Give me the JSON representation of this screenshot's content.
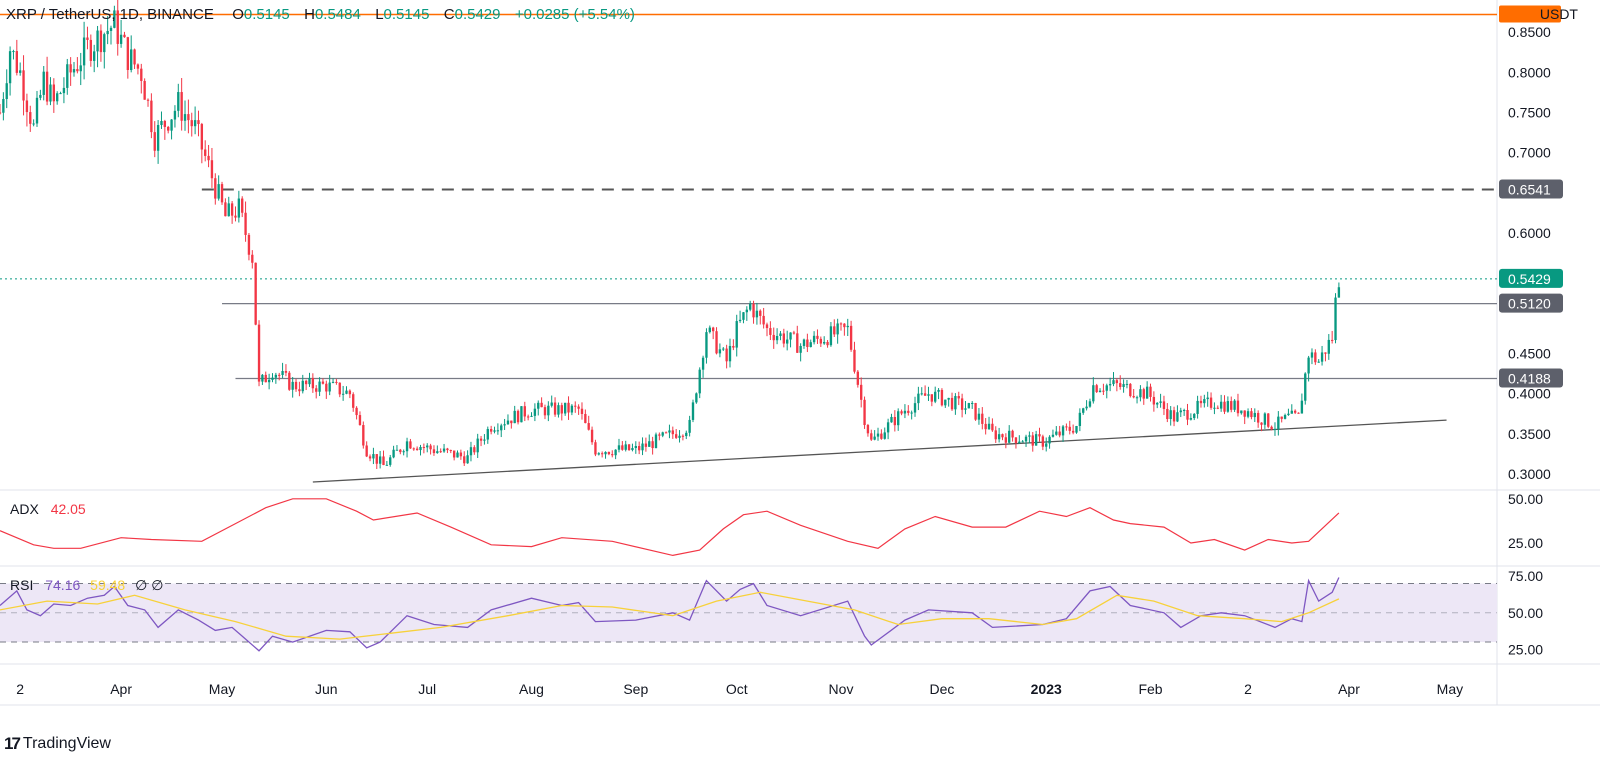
{
  "header": {
    "symbol": "XRP / TetherUS, 1D, BINANCE",
    "open_label": "O",
    "open": "0.5145",
    "high_label": "H",
    "high": "0.5484",
    "low_label": "L",
    "low": "0.5145",
    "close_label": "C",
    "close": "0.5429",
    "change": "+0.0285 (+5.54%)"
  },
  "currency": "USDT",
  "indicators": {
    "adx": {
      "name": "ADX",
      "value": "42.05"
    },
    "rsi": {
      "name": "RSI",
      "value": "74.16",
      "ma_value": "59.48",
      "extra": "∅ ∅"
    }
  },
  "brand": "TradingView",
  "colors": {
    "up": "#089981",
    "down": "#f23645",
    "adx": "#f23645",
    "rsi": "#7e57c2",
    "rsi_ma": "#f7d13a",
    "rsi_band": "#ede7f6",
    "accent": "#ff6d00",
    "level": "#787b86"
  },
  "chart_data": [
    {
      "type": "candlestick",
      "ylim": [
        0.28,
        0.89
      ],
      "y_ticks": [
        "0.8500",
        "0.8000",
        "0.7500",
        "0.7000",
        "0.6000",
        "0.4500",
        "0.4000",
        "0.3500",
        "0.3000"
      ],
      "x_ticks": [
        "2",
        "Apr",
        "May",
        "Jun",
        "Jul",
        "Aug",
        "Sep",
        "Oct",
        "Nov",
        "Dec",
        "2023",
        "Feb",
        "2",
        "Apr",
        "May"
      ],
      "price_markers": [
        {
          "label": "0.6541",
          "value": 0.6541,
          "kind": "level"
        },
        {
          "label": "0.5429",
          "value": 0.5429,
          "kind": "last"
        },
        {
          "label": "0.5120",
          "value": 0.512,
          "kind": "level"
        },
        {
          "label": "0.4188",
          "value": 0.4188,
          "kind": "level"
        }
      ],
      "accent_level": 0.872,
      "dashed_resistance": 0.6541,
      "support_trendline": [
        {
          "date": "2022-05-28",
          "price": 0.29
        },
        {
          "date": "2023-04-30",
          "price": 0.367
        }
      ],
      "close_path": [
        [
          "2022-02-24",
          0.75
        ],
        [
          "2022-02-27",
          0.83
        ],
        [
          "2022-03-02",
          0.8
        ],
        [
          "2022-03-06",
          0.73
        ],
        [
          "2022-03-09",
          0.79
        ],
        [
          "2022-03-12",
          0.76
        ],
        [
          "2022-03-17",
          0.8
        ],
        [
          "2022-03-22",
          0.83
        ],
        [
          "2022-03-27",
          0.85
        ],
        [
          "2022-03-30",
          0.86
        ],
        [
          "2022-04-03",
          0.82
        ],
        [
          "2022-04-07",
          0.8
        ],
        [
          "2022-04-11",
          0.72
        ],
        [
          "2022-04-18",
          0.76
        ],
        [
          "2022-04-23",
          0.73
        ],
        [
          "2022-04-28",
          0.67
        ],
        [
          "2022-05-02",
          0.62
        ],
        [
          "2022-05-06",
          0.63
        ],
        [
          "2022-05-10",
          0.57
        ],
        [
          "2022-05-12",
          0.41
        ],
        [
          "2022-05-16",
          0.43
        ],
        [
          "2022-05-22",
          0.41
        ],
        [
          "2022-06-01",
          0.41
        ],
        [
          "2022-06-08",
          0.4
        ],
        [
          "2022-06-13",
          0.33
        ],
        [
          "2022-06-18",
          0.31
        ],
        [
          "2022-06-25",
          0.34
        ],
        [
          "2022-07-03",
          0.33
        ],
        [
          "2022-07-13",
          0.32
        ],
        [
          "2022-07-20",
          0.36
        ],
        [
          "2022-08-01",
          0.38
        ],
        [
          "2022-08-15",
          0.38
        ],
        [
          "2022-08-20",
          0.33
        ],
        [
          "2022-09-01",
          0.33
        ],
        [
          "2022-09-12",
          0.35
        ],
        [
          "2022-09-17",
          0.36
        ],
        [
          "2022-09-22",
          0.48
        ],
        [
          "2022-09-28",
          0.44
        ],
        [
          "2022-10-01",
          0.48
        ],
        [
          "2022-10-05",
          0.51
        ],
        [
          "2022-10-10",
          0.48
        ],
        [
          "2022-10-20",
          0.46
        ],
        [
          "2022-11-03",
          0.48
        ],
        [
          "2022-11-08",
          0.37
        ],
        [
          "2022-11-10",
          0.34
        ],
        [
          "2022-11-20",
          0.38
        ],
        [
          "2022-11-27",
          0.4
        ],
        [
          "2022-12-10",
          0.38
        ],
        [
          "2022-12-16",
          0.35
        ],
        [
          "2022-12-31",
          0.34
        ],
        [
          "2023-01-10",
          0.36
        ],
        [
          "2023-01-15",
          0.41
        ],
        [
          "2023-01-22",
          0.41
        ],
        [
          "2023-01-31",
          0.4
        ],
        [
          "2023-02-08",
          0.37
        ],
        [
          "2023-02-14",
          0.38
        ],
        [
          "2023-02-20",
          0.39
        ],
        [
          "2023-03-01",
          0.38
        ],
        [
          "2023-03-10",
          0.36
        ],
        [
          "2023-03-14",
          0.37
        ],
        [
          "2023-03-17",
          0.37
        ],
        [
          "2023-03-20",
          0.45
        ],
        [
          "2023-03-23",
          0.44
        ],
        [
          "2023-03-27",
          0.47
        ],
        [
          "2023-03-28",
          0.5145
        ],
        [
          "2023-03-29",
          0.5429
        ]
      ]
    },
    {
      "type": "line",
      "title": "ADX",
      "ylim": [
        12,
        55
      ],
      "y_ticks": [
        "50.00",
        "25.00"
      ],
      "series": [
        {
          "name": "ADX",
          "points": [
            [
              "2022-02-24",
              32
            ],
            [
              "2022-03-06",
              24
            ],
            [
              "2022-03-12",
              22
            ],
            [
              "2022-03-20",
              22
            ],
            [
              "2022-04-01",
              28
            ],
            [
              "2022-04-10",
              27
            ],
            [
              "2022-04-25",
              26
            ],
            [
              "2022-05-05",
              36
            ],
            [
              "2022-05-14",
              45
            ],
            [
              "2022-05-22",
              50
            ],
            [
              "2022-06-01",
              50
            ],
            [
              "2022-06-10",
              43
            ],
            [
              "2022-06-15",
              38
            ],
            [
              "2022-06-28",
              42
            ],
            [
              "2022-07-08",
              34
            ],
            [
              "2022-07-20",
              24
            ],
            [
              "2022-08-01",
              23
            ],
            [
              "2022-08-10",
              28
            ],
            [
              "2022-08-25",
              26
            ],
            [
              "2022-09-12",
              18
            ],
            [
              "2022-09-20",
              21
            ],
            [
              "2022-09-27",
              33
            ],
            [
              "2022-10-03",
              41
            ],
            [
              "2022-10-10",
              43
            ],
            [
              "2022-10-20",
              35
            ],
            [
              "2022-11-03",
              26
            ],
            [
              "2022-11-12",
              22
            ],
            [
              "2022-11-20",
              33
            ],
            [
              "2022-11-29",
              40
            ],
            [
              "2022-12-10",
              34
            ],
            [
              "2022-12-20",
              34
            ],
            [
              "2022-12-30",
              43
            ],
            [
              "2023-01-07",
              40
            ],
            [
              "2023-01-14",
              45
            ],
            [
              "2023-01-21",
              38
            ],
            [
              "2023-01-26",
              36
            ],
            [
              "2023-02-05",
              34
            ],
            [
              "2023-02-13",
              25
            ],
            [
              "2023-02-20",
              27
            ],
            [
              "2023-03-01",
              21
            ],
            [
              "2023-03-08",
              27
            ],
            [
              "2023-03-15",
              25
            ],
            [
              "2023-03-20",
              26
            ],
            [
              "2023-03-29",
              42.05
            ]
          ]
        }
      ]
    },
    {
      "type": "line",
      "title": "RSI",
      "ylim": [
        15,
        82
      ],
      "y_ticks": [
        "75.00",
        "50.00",
        "25.00"
      ],
      "bands": [
        70,
        50,
        30
      ],
      "series": [
        {
          "name": "RSI",
          "points": [
            [
              "2022-02-24",
              55
            ],
            [
              "2022-03-01",
              65
            ],
            [
              "2022-03-04",
              52
            ],
            [
              "2022-03-08",
              48
            ],
            [
              "2022-03-12",
              56
            ],
            [
              "2022-03-17",
              55
            ],
            [
              "2022-03-22",
              60
            ],
            [
              "2022-03-27",
              62
            ],
            [
              "2022-03-30",
              68
            ],
            [
              "2022-04-03",
              55
            ],
            [
              "2022-04-08",
              52
            ],
            [
              "2022-04-12",
              40
            ],
            [
              "2022-04-18",
              52
            ],
            [
              "2022-04-24",
              45
            ],
            [
              "2022-04-29",
              38
            ],
            [
              "2022-05-04",
              40
            ],
            [
              "2022-05-08",
              32
            ],
            [
              "2022-05-12",
              24
            ],
            [
              "2022-05-16",
              34
            ],
            [
              "2022-05-22",
              30
            ],
            [
              "2022-06-01",
              38
            ],
            [
              "2022-06-08",
              37
            ],
            [
              "2022-06-13",
              26
            ],
            [
              "2022-06-17",
              30
            ],
            [
              "2022-06-25",
              48
            ],
            [
              "2022-07-03",
              42
            ],
            [
              "2022-07-13",
              40
            ],
            [
              "2022-07-20",
              52
            ],
            [
              "2022-08-01",
              60
            ],
            [
              "2022-08-10",
              55
            ],
            [
              "2022-08-15",
              57
            ],
            [
              "2022-08-20",
              44
            ],
            [
              "2022-09-01",
              45
            ],
            [
              "2022-09-12",
              50
            ],
            [
              "2022-09-17",
              45
            ],
            [
              "2022-09-22",
              72
            ],
            [
              "2022-09-28",
              58
            ],
            [
              "2022-10-02",
              66
            ],
            [
              "2022-10-06",
              70
            ],
            [
              "2022-10-10",
              55
            ],
            [
              "2022-10-20",
              48
            ],
            [
              "2022-11-03",
              58
            ],
            [
              "2022-11-08",
              34
            ],
            [
              "2022-11-10",
              28
            ],
            [
              "2022-11-20",
              45
            ],
            [
              "2022-11-27",
              52
            ],
            [
              "2022-12-10",
              50
            ],
            [
              "2022-12-16",
              40
            ],
            [
              "2022-12-31",
              42
            ],
            [
              "2023-01-07",
              46
            ],
            [
              "2023-01-14",
              65
            ],
            [
              "2023-01-20",
              68
            ],
            [
              "2023-01-26",
              55
            ],
            [
              "2023-02-05",
              50
            ],
            [
              "2023-02-10",
              40
            ],
            [
              "2023-02-16",
              48
            ],
            [
              "2023-02-22",
              50
            ],
            [
              "2023-03-01",
              48
            ],
            [
              "2023-03-10",
              40
            ],
            [
              "2023-03-15",
              46
            ],
            [
              "2023-03-18",
              44
            ],
            [
              "2023-03-20",
              72
            ],
            [
              "2023-03-23",
              58
            ],
            [
              "2023-03-27",
              64
            ],
            [
              "2023-03-29",
              74.16
            ]
          ]
        },
        {
          "name": "RSI-based MA",
          "points": [
            [
              "2022-02-24",
              52
            ],
            [
              "2022-03-10",
              58
            ],
            [
              "2022-03-25",
              56
            ],
            [
              "2022-04-05",
              62
            ],
            [
              "2022-04-20",
              52
            ],
            [
              "2022-05-05",
              44
            ],
            [
              "2022-05-20",
              34
            ],
            [
              "2022-06-05",
              32
            ],
            [
              "2022-06-20",
              36
            ],
            [
              "2022-07-05",
              40
            ],
            [
              "2022-07-25",
              48
            ],
            [
              "2022-08-10",
              55
            ],
            [
              "2022-08-25",
              54
            ],
            [
              "2022-09-12",
              48
            ],
            [
              "2022-09-25",
              58
            ],
            [
              "2022-10-08",
              64
            ],
            [
              "2022-10-22",
              58
            ],
            [
              "2022-11-05",
              52
            ],
            [
              "2022-11-18",
              42
            ],
            [
              "2022-12-01",
              46
            ],
            [
              "2022-12-15",
              46
            ],
            [
              "2022-12-31",
              42
            ],
            [
              "2023-01-10",
              46
            ],
            [
              "2023-01-22",
              62
            ],
            [
              "2023-02-02",
              58
            ],
            [
              "2023-02-15",
              48
            ],
            [
              "2023-03-01",
              46
            ],
            [
              "2023-03-12",
              44
            ],
            [
              "2023-03-20",
              50
            ],
            [
              "2023-03-29",
              59.48
            ]
          ]
        }
      ]
    }
  ]
}
